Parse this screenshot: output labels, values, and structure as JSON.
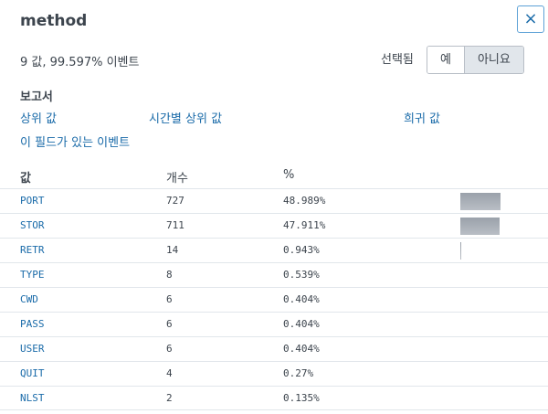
{
  "panel": {
    "title": "method",
    "summary": "9 값, 99.597% 이벤트",
    "selected_label": "선택됨",
    "toggle": {
      "yes": "예",
      "no": "아니요",
      "active": "no"
    },
    "close_icon": "×"
  },
  "reports": {
    "heading": "보고서",
    "top_values": "상위 값",
    "top_values_by_time": "시간별 상위 값",
    "rare_values": "희귀 값",
    "events_with_field": "이 필드가 있는 이벤트"
  },
  "table": {
    "headers": {
      "value": "값",
      "count": "개수",
      "percent": "%"
    },
    "rows": [
      {
        "value": "PORT",
        "count": "727",
        "percent": "48.989%",
        "fraction": 0.48989
      },
      {
        "value": "STOR",
        "count": "711",
        "percent": "47.911%",
        "fraction": 0.47911
      },
      {
        "value": "RETR",
        "count": "14",
        "percent": "0.943%",
        "fraction": 0.00943
      },
      {
        "value": "TYPE",
        "count": "8",
        "percent": "0.539%",
        "fraction": 0.00539
      },
      {
        "value": "CWD",
        "count": "6",
        "percent": "0.404%",
        "fraction": 0.00404
      },
      {
        "value": "PASS",
        "count": "6",
        "percent": "0.404%",
        "fraction": 0.00404
      },
      {
        "value": "USER",
        "count": "6",
        "percent": "0.404%",
        "fraction": 0.00404
      },
      {
        "value": "QUIT",
        "count": "4",
        "percent": "0.27%",
        "fraction": 0.0027
      },
      {
        "value": "NLST",
        "count": "2",
        "percent": "0.135%",
        "fraction": 0.00135
      }
    ]
  }
}
